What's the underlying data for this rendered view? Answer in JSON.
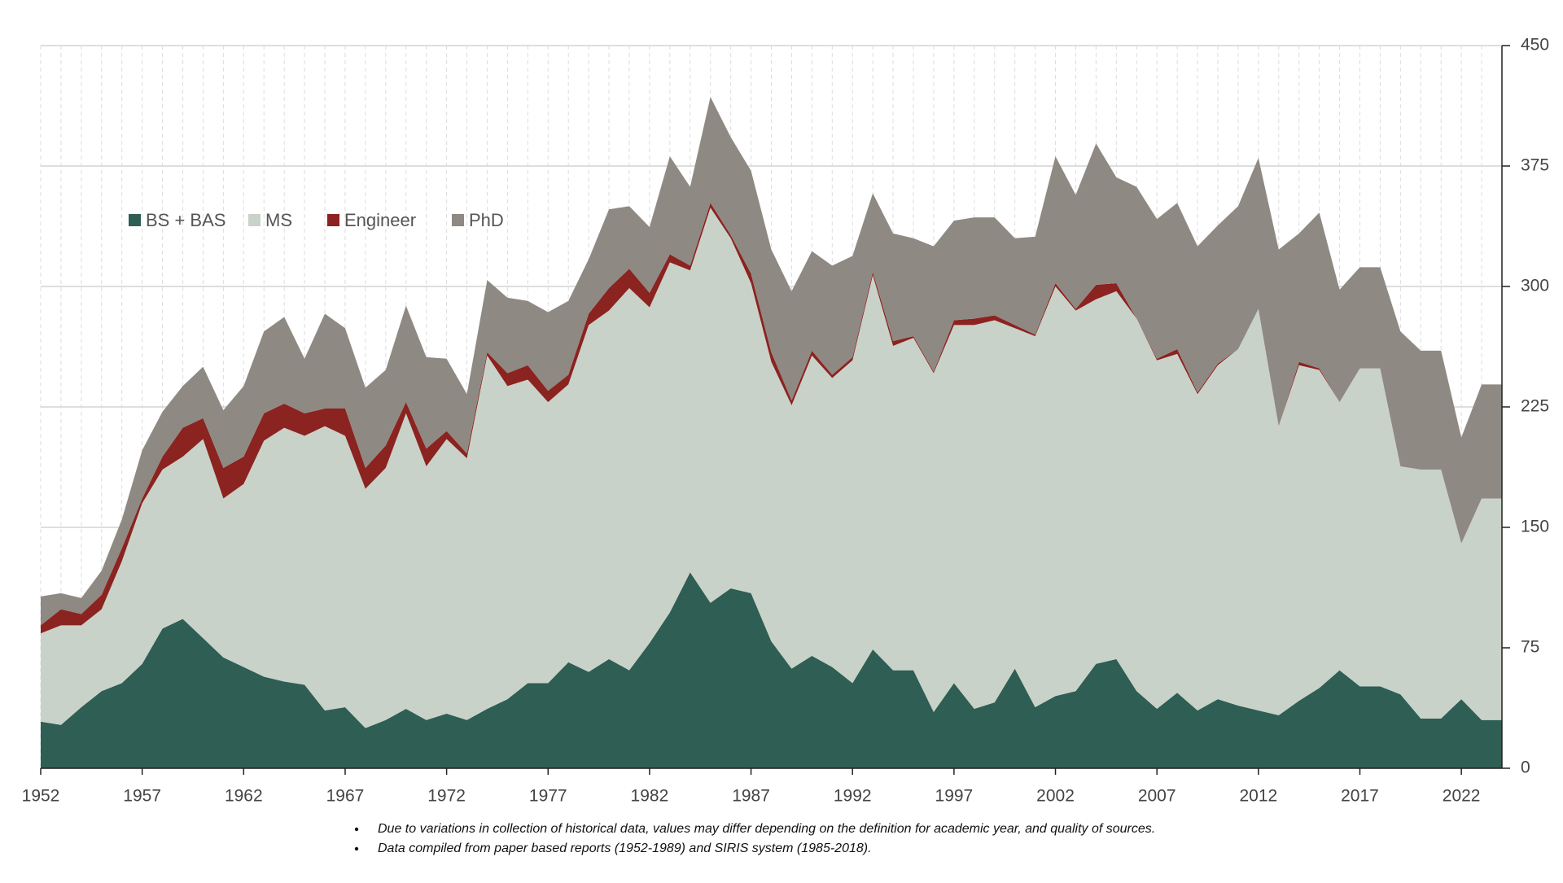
{
  "chart_data": {
    "type": "stacked_area",
    "x": [
      1952,
      1953,
      1954,
      1955,
      1956,
      1957,
      1958,
      1959,
      1960,
      1961,
      1962,
      1963,
      1964,
      1965,
      1966,
      1967,
      1968,
      1969,
      1970,
      1971,
      1972,
      1973,
      1974,
      1975,
      1976,
      1977,
      1978,
      1979,
      1980,
      1981,
      1982,
      1983,
      1984,
      1985,
      1986,
      1987,
      1988,
      1989,
      1990,
      1991,
      1992,
      1993,
      1994,
      1995,
      1996,
      1997,
      1998,
      1999,
      2000,
      2001,
      2002,
      2003,
      2004,
      2005,
      2006,
      2007,
      2008,
      2009,
      2010,
      2011,
      2012,
      2013,
      2014,
      2015,
      2016,
      2017,
      2018,
      2019,
      2020,
      2021,
      2022,
      2023,
      2024
    ],
    "series": [
      {
        "name": "BS + BAS",
        "color": "#2e5e54",
        "values": [
          29,
          27,
          38,
          48,
          53,
          65,
          87,
          93,
          81,
          69,
          63,
          57,
          54,
          52,
          36,
          38,
          25,
          30,
          37,
          30,
          34,
          30,
          37,
          43,
          53,
          53,
          66,
          60,
          68,
          61,
          78,
          97,
          122,
          103,
          112,
          109,
          79,
          62,
          70,
          63,
          53,
          74,
          61,
          61,
          35,
          53,
          37,
          41,
          62,
          38,
          45,
          48,
          65,
          68,
          48,
          37,
          47,
          36,
          43,
          39,
          36,
          33,
          42,
          50,
          61,
          51,
          51,
          46,
          31,
          31,
          43,
          30,
          30
        ]
      },
      {
        "name": "MS",
        "color": "#c9d2c8",
        "values": [
          55,
          62,
          51,
          51,
          76,
          100,
          99,
          101,
          124,
          99,
          114,
          147,
          158,
          155,
          177,
          169,
          149,
          157,
          184,
          158,
          171,
          163,
          220,
          195,
          189,
          175,
          173,
          216,
          217,
          238,
          209,
          218,
          188,
          246,
          218,
          193,
          174,
          164,
          187,
          180,
          201,
          233,
          202,
          207,
          211,
          223,
          239,
          238,
          212,
          231,
          255,
          237,
          227,
          229,
          232,
          217,
          211,
          197,
          208,
          222,
          250,
          180,
          209,
          198,
          167,
          198,
          198,
          142,
          155,
          155,
          97,
          138,
          138
        ]
      },
      {
        "name": "Engineer",
        "color": "#8b2320",
        "values": [
          5,
          10,
          7,
          9,
          8,
          3,
          8,
          18,
          13,
          19,
          17,
          17,
          15,
          14,
          11,
          17,
          13,
          14,
          7,
          11,
          5,
          3,
          2,
          8,
          9,
          7,
          6,
          7,
          14,
          12,
          9,
          5,
          3,
          3,
          2,
          6,
          6,
          3,
          3,
          2,
          2,
          2,
          3,
          1,
          1,
          3,
          4,
          3,
          2,
          1,
          2,
          1,
          9,
          5,
          0,
          1,
          3,
          1,
          1,
          0,
          0,
          0,
          2,
          1,
          0,
          0,
          0,
          0,
          0,
          0,
          0,
          0,
          0
        ]
      },
      {
        "name": "PhD",
        "color": "#8e8982",
        "values": [
          18,
          10,
          10,
          15,
          18,
          30,
          28,
          26,
          32,
          36,
          44,
          51,
          54,
          34,
          59,
          50,
          50,
          47,
          60,
          57,
          45,
          37,
          45,
          47,
          40,
          49,
          46,
          34,
          49,
          39,
          41,
          61,
          49,
          66,
          61,
          64,
          64,
          68,
          62,
          68,
          63,
          49,
          67,
          61,
          78,
          62,
          63,
          61,
          54,
          61,
          79,
          71,
          88,
          66,
          82,
          87,
          91,
          91,
          86,
          89,
          94,
          110,
          80,
          97,
          70,
          63,
          63,
          84,
          74,
          74,
          66,
          71,
          71
        ]
      }
    ],
    "xlim": [
      1952,
      2024
    ],
    "xticks": [
      1952,
      1957,
      1962,
      1967,
      1972,
      1977,
      1982,
      1987,
      1992,
      1997,
      2002,
      2007,
      2012,
      2017,
      2022
    ],
    "ylim": [
      0,
      450
    ],
    "yticks": [
      0,
      75,
      150,
      225,
      300,
      375,
      450
    ],
    "grid": true,
    "legend": "upper left",
    "notes": [
      "Due to variations in collection of historical data, values may differ depending on the definition for academic year, and quality of sources.",
      "Data compiled from paper based reports (1952-1989) and SIRIS system (1985-2018)."
    ]
  }
}
